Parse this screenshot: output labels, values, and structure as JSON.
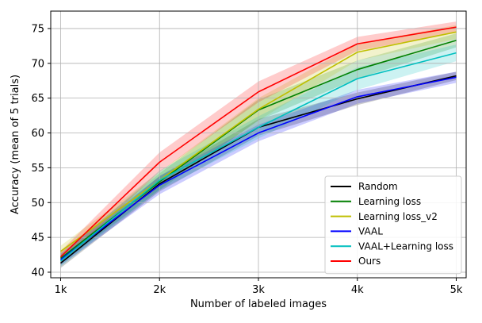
{
  "chart_data": {
    "type": "line",
    "title": "",
    "xlabel": "Number of labeled images",
    "ylabel": "Accuracy (mean of 5 trials)",
    "x": [
      1,
      2,
      3,
      4,
      5
    ],
    "x_tick_labels": [
      "1k",
      "2k",
      "3k",
      "4k",
      "5k"
    ],
    "xlim": [
      0.9,
      5.1
    ],
    "ylim": [
      39.2,
      77.5
    ],
    "y_ticks": [
      40,
      45,
      50,
      55,
      60,
      65,
      70,
      75
    ],
    "y_tick_labels": [
      "40",
      "45",
      "50",
      "55",
      "60",
      "65",
      "70",
      "75"
    ],
    "grid": true,
    "legend_position": "bottom-right",
    "shaded_band": "range across trials",
    "series": [
      {
        "name": "Random",
        "color": "#000000",
        "values": [
          41.3,
          52.7,
          60.8,
          64.9,
          68.2
        ],
        "lower": [
          40.6,
          51.6,
          59.6,
          64.0,
          67.6
        ],
        "upper": [
          42.0,
          53.8,
          62.0,
          65.8,
          68.8
        ]
      },
      {
        "name": "Learning loss",
        "color": "#008000",
        "values": [
          42.0,
          53.0,
          63.3,
          69.1,
          73.3
        ],
        "lower": [
          41.2,
          51.8,
          61.8,
          67.8,
          72.3
        ],
        "upper": [
          42.8,
          54.2,
          64.8,
          70.4,
          74.3
        ]
      },
      {
        "name": "Learning loss_v2",
        "color": "#bfbf00",
        "values": [
          43.0,
          53.2,
          63.4,
          71.6,
          74.5
        ],
        "lower": [
          42.2,
          52.0,
          61.8,
          70.4,
          73.5
        ],
        "upper": [
          43.8,
          54.4,
          65.0,
          72.8,
          75.5
        ]
      },
      {
        "name": "VAAL",
        "color": "#0000ff",
        "values": [
          41.8,
          52.5,
          60.0,
          65.2,
          68.0
        ],
        "lower": [
          41.0,
          51.2,
          58.8,
          64.2,
          67.2
        ],
        "upper": [
          42.6,
          53.8,
          61.2,
          66.2,
          68.8
        ]
      },
      {
        "name": "VAAL+Learning loss",
        "color": "#00bfbf",
        "values": [
          41.6,
          53.2,
          60.8,
          67.8,
          71.5
        ],
        "lower": [
          40.8,
          51.8,
          59.2,
          66.2,
          70.3
        ],
        "upper": [
          42.4,
          54.6,
          62.4,
          69.4,
          72.7
        ]
      },
      {
        "name": "Ours",
        "color": "#ff0000",
        "values": [
          42.2,
          55.8,
          65.9,
          72.8,
          75.2
        ],
        "lower": [
          41.4,
          54.4,
          64.4,
          71.8,
          74.4
        ],
        "upper": [
          43.0,
          57.2,
          67.4,
          73.8,
          76.0
        ]
      }
    ]
  }
}
